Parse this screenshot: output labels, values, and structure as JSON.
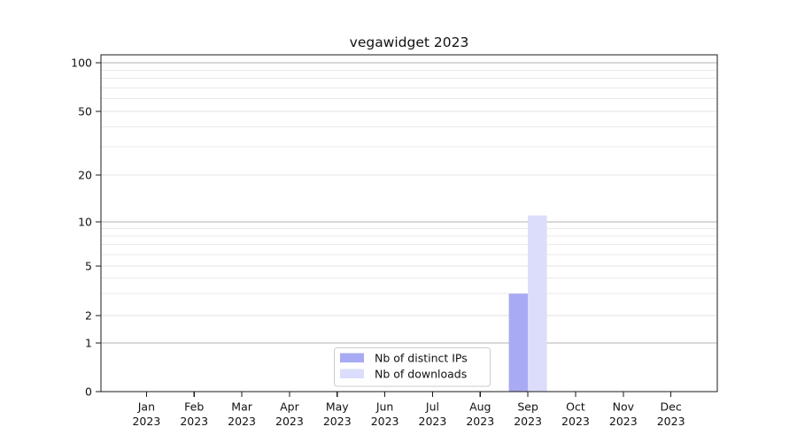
{
  "chart_data": {
    "type": "bar",
    "title": "vegawidget 2023",
    "categories": [
      "Jan",
      "Feb",
      "Mar",
      "Apr",
      "May",
      "Jun",
      "Jul",
      "Aug",
      "Sep",
      "Oct",
      "Nov",
      "Dec"
    ],
    "x_year_label": "2023",
    "series": [
      {
        "name": "Nb of distinct IPs",
        "color": "#a8aaf3",
        "values": [
          0,
          0,
          0,
          0,
          0,
          0,
          0,
          0,
          3,
          0,
          0,
          0
        ]
      },
      {
        "name": "Nb of downloads",
        "color": "#dcddfa",
        "values": [
          0,
          0,
          0,
          0,
          0,
          0,
          0,
          0,
          11,
          0,
          0,
          0
        ]
      }
    ],
    "y_ticks": [
      0,
      1,
      2,
      5,
      10,
      20,
      50,
      100
    ],
    "y_scale": "log-like (linear 0-1 segment, log above 1)",
    "ylim": [
      0,
      113
    ],
    "grid": true,
    "legend_position": "lower-center"
  },
  "colors": {
    "bar_distinct_ips": "#a8aaf3",
    "bar_downloads": "#dcddfa",
    "grid_major": "#b3b3b3",
    "grid_minor": "#eaeaea",
    "grid_labeled_minor": "#e3e3e3",
    "spine": "#1a1a1a",
    "legend_border": "#cccccc",
    "background": "#ffffff"
  }
}
